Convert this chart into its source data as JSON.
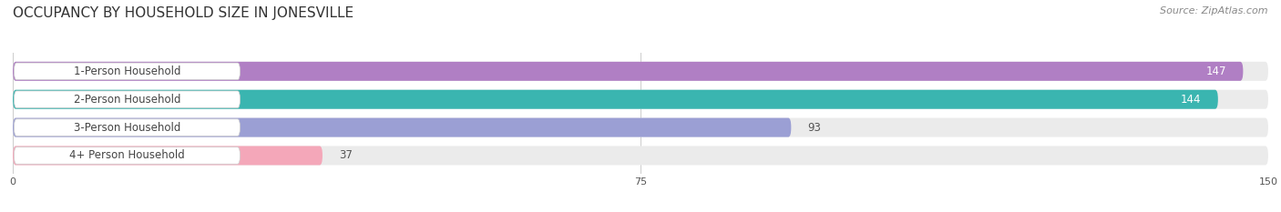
{
  "title": "OCCUPANCY BY HOUSEHOLD SIZE IN JONESVILLE",
  "source": "Source: ZipAtlas.com",
  "categories": [
    "1-Person Household",
    "2-Person Household",
    "3-Person Household",
    "4+ Person Household"
  ],
  "values": [
    147,
    144,
    93,
    37
  ],
  "bar_colors": [
    "#b07fc4",
    "#3ab5b0",
    "#9b9fd4",
    "#f4a7b9"
  ],
  "background_color": "#ffffff",
  "bar_bg_color": "#ebebeb",
  "xlim": [
    0,
    150
  ],
  "xticks": [
    0,
    75,
    150
  ],
  "label_fontsize": 8.5,
  "value_fontsize": 8.5,
  "title_fontsize": 11,
  "source_fontsize": 8,
  "bar_height": 0.68,
  "label_bg_color": "#ffffff",
  "label_text_color": "#444444"
}
